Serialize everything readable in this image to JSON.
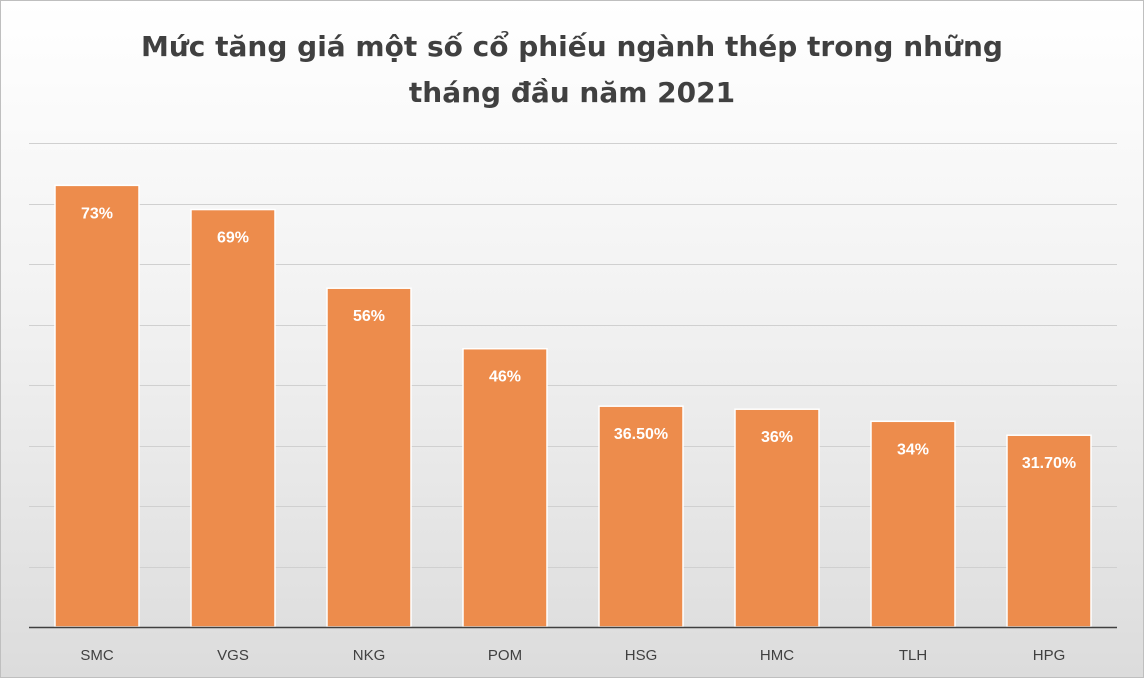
{
  "chart_data": {
    "type": "bar",
    "title_lines": [
      "Mức tăng giá một số cổ phiếu ngành thép trong những",
      "tháng đầu năm 2021"
    ],
    "categories": [
      "SMC",
      "VGS",
      "NKG",
      "POM",
      "HSG",
      "HMC",
      "TLH",
      "HPG"
    ],
    "values": [
      73,
      69,
      56,
      46,
      36.5,
      36,
      34,
      31.7
    ],
    "data_labels": [
      "73%",
      "69%",
      "56%",
      "46%",
      "36.50%",
      "36%",
      "34%",
      "31.70%"
    ],
    "ylim": [
      0,
      80
    ],
    "y_gridline_step": 10,
    "y_tick_labels_visible": false,
    "xlabel": "",
    "ylabel": "",
    "grid": true,
    "legend": "none",
    "colors": {
      "bar": "#ED8C4C",
      "bar_edge": "#ffffff",
      "gridline": "#d0d0d0",
      "axis": "#404040",
      "data_label": "#ffffff",
      "tick_label": "#404040",
      "title": "#404040"
    }
  }
}
